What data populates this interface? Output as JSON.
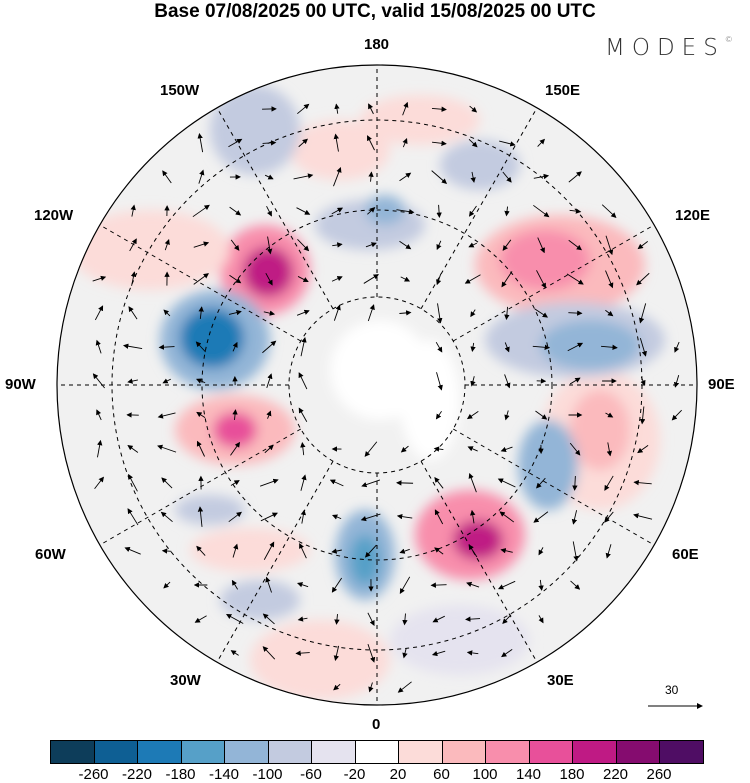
{
  "title": "Base 07/08/2025 00 UTC, valid 15/08/2025 00 UTC",
  "logo": "MODES",
  "logo_mark": "©",
  "longitude_labels": {
    "top": "180",
    "bottom": "0",
    "e150": "150E",
    "e120": "120E",
    "e90": "90E",
    "e60": "60E",
    "e30": "30E",
    "w150": "150W",
    "w120": "120W",
    "w90": "90W",
    "w60": "60W",
    "w30": "30W"
  },
  "reference_vector": {
    "label": "30",
    "units_value": 30
  },
  "colorbar": {
    "colors": [
      "#0d3d5a",
      "#0e5f94",
      "#1d7ab6",
      "#56a0c8",
      "#93b5d7",
      "#c3cbe0",
      "#e5e3ef",
      "#ffffff",
      "#fcdcd9",
      "#fbbabd",
      "#f88eac",
      "#e8509a",
      "#bf1a84",
      "#850c6f",
      "#4f0d64"
    ],
    "ticks": [
      "-260",
      "-220",
      "-180",
      "-140",
      "-100",
      "-60",
      "-20",
      "20",
      "60",
      "100",
      "140",
      "180",
      "220",
      "260"
    ]
  }
}
